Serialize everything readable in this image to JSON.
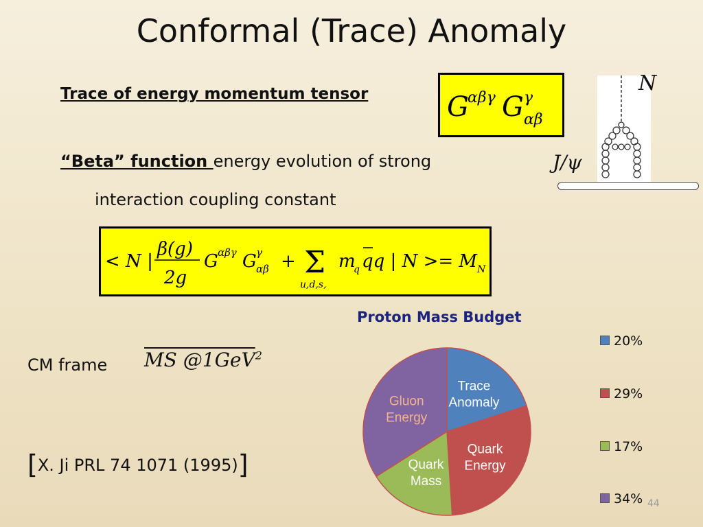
{
  "slide": {
    "title": "Conformal (Trace) Anomaly",
    "heading_trace": "Trace of energy momentum tensor",
    "heading_beta": "“Beta” function ",
    "beta_text": "energy evolution of strong",
    "beta_text_2": "interaction coupling constant",
    "cm_frame": "CM frame",
    "ms_label": "MS @1GeV",
    "ms_exp": "2",
    "reference": "X. Ji  PRL 74 1071 (1995)",
    "page_number": "44"
  },
  "equations": {
    "gg": "GαβγGγαβ",
    "expectation": "< N | β(g)/2g GαβγGγαβ + Σu,d,s, mq q̄q | N >= MN"
  },
  "diagram": {
    "n_label": "N",
    "jpsi_label": "J/ψ"
  },
  "chart_data": {
    "type": "pie",
    "title": "Proton Mass Budget",
    "slices": [
      {
        "label": "Trace Anomaly",
        "value": 20,
        "color": "#4f81bd"
      },
      {
        "label": "Quark Energy",
        "value": 29,
        "color": "#c0504d"
      },
      {
        "label": "Quark Mass",
        "value": 17,
        "color": "#9bbb59"
      },
      {
        "label": "Gluon Energy",
        "value": 34,
        "color": "#8064a2"
      }
    ],
    "legend": [
      "20%",
      "29%",
      "17%",
      "34%"
    ],
    "legend_position": "right",
    "label_colors": [
      "#ffffff",
      "#ffffff",
      "#ffffff",
      "#f2b48a"
    ]
  }
}
